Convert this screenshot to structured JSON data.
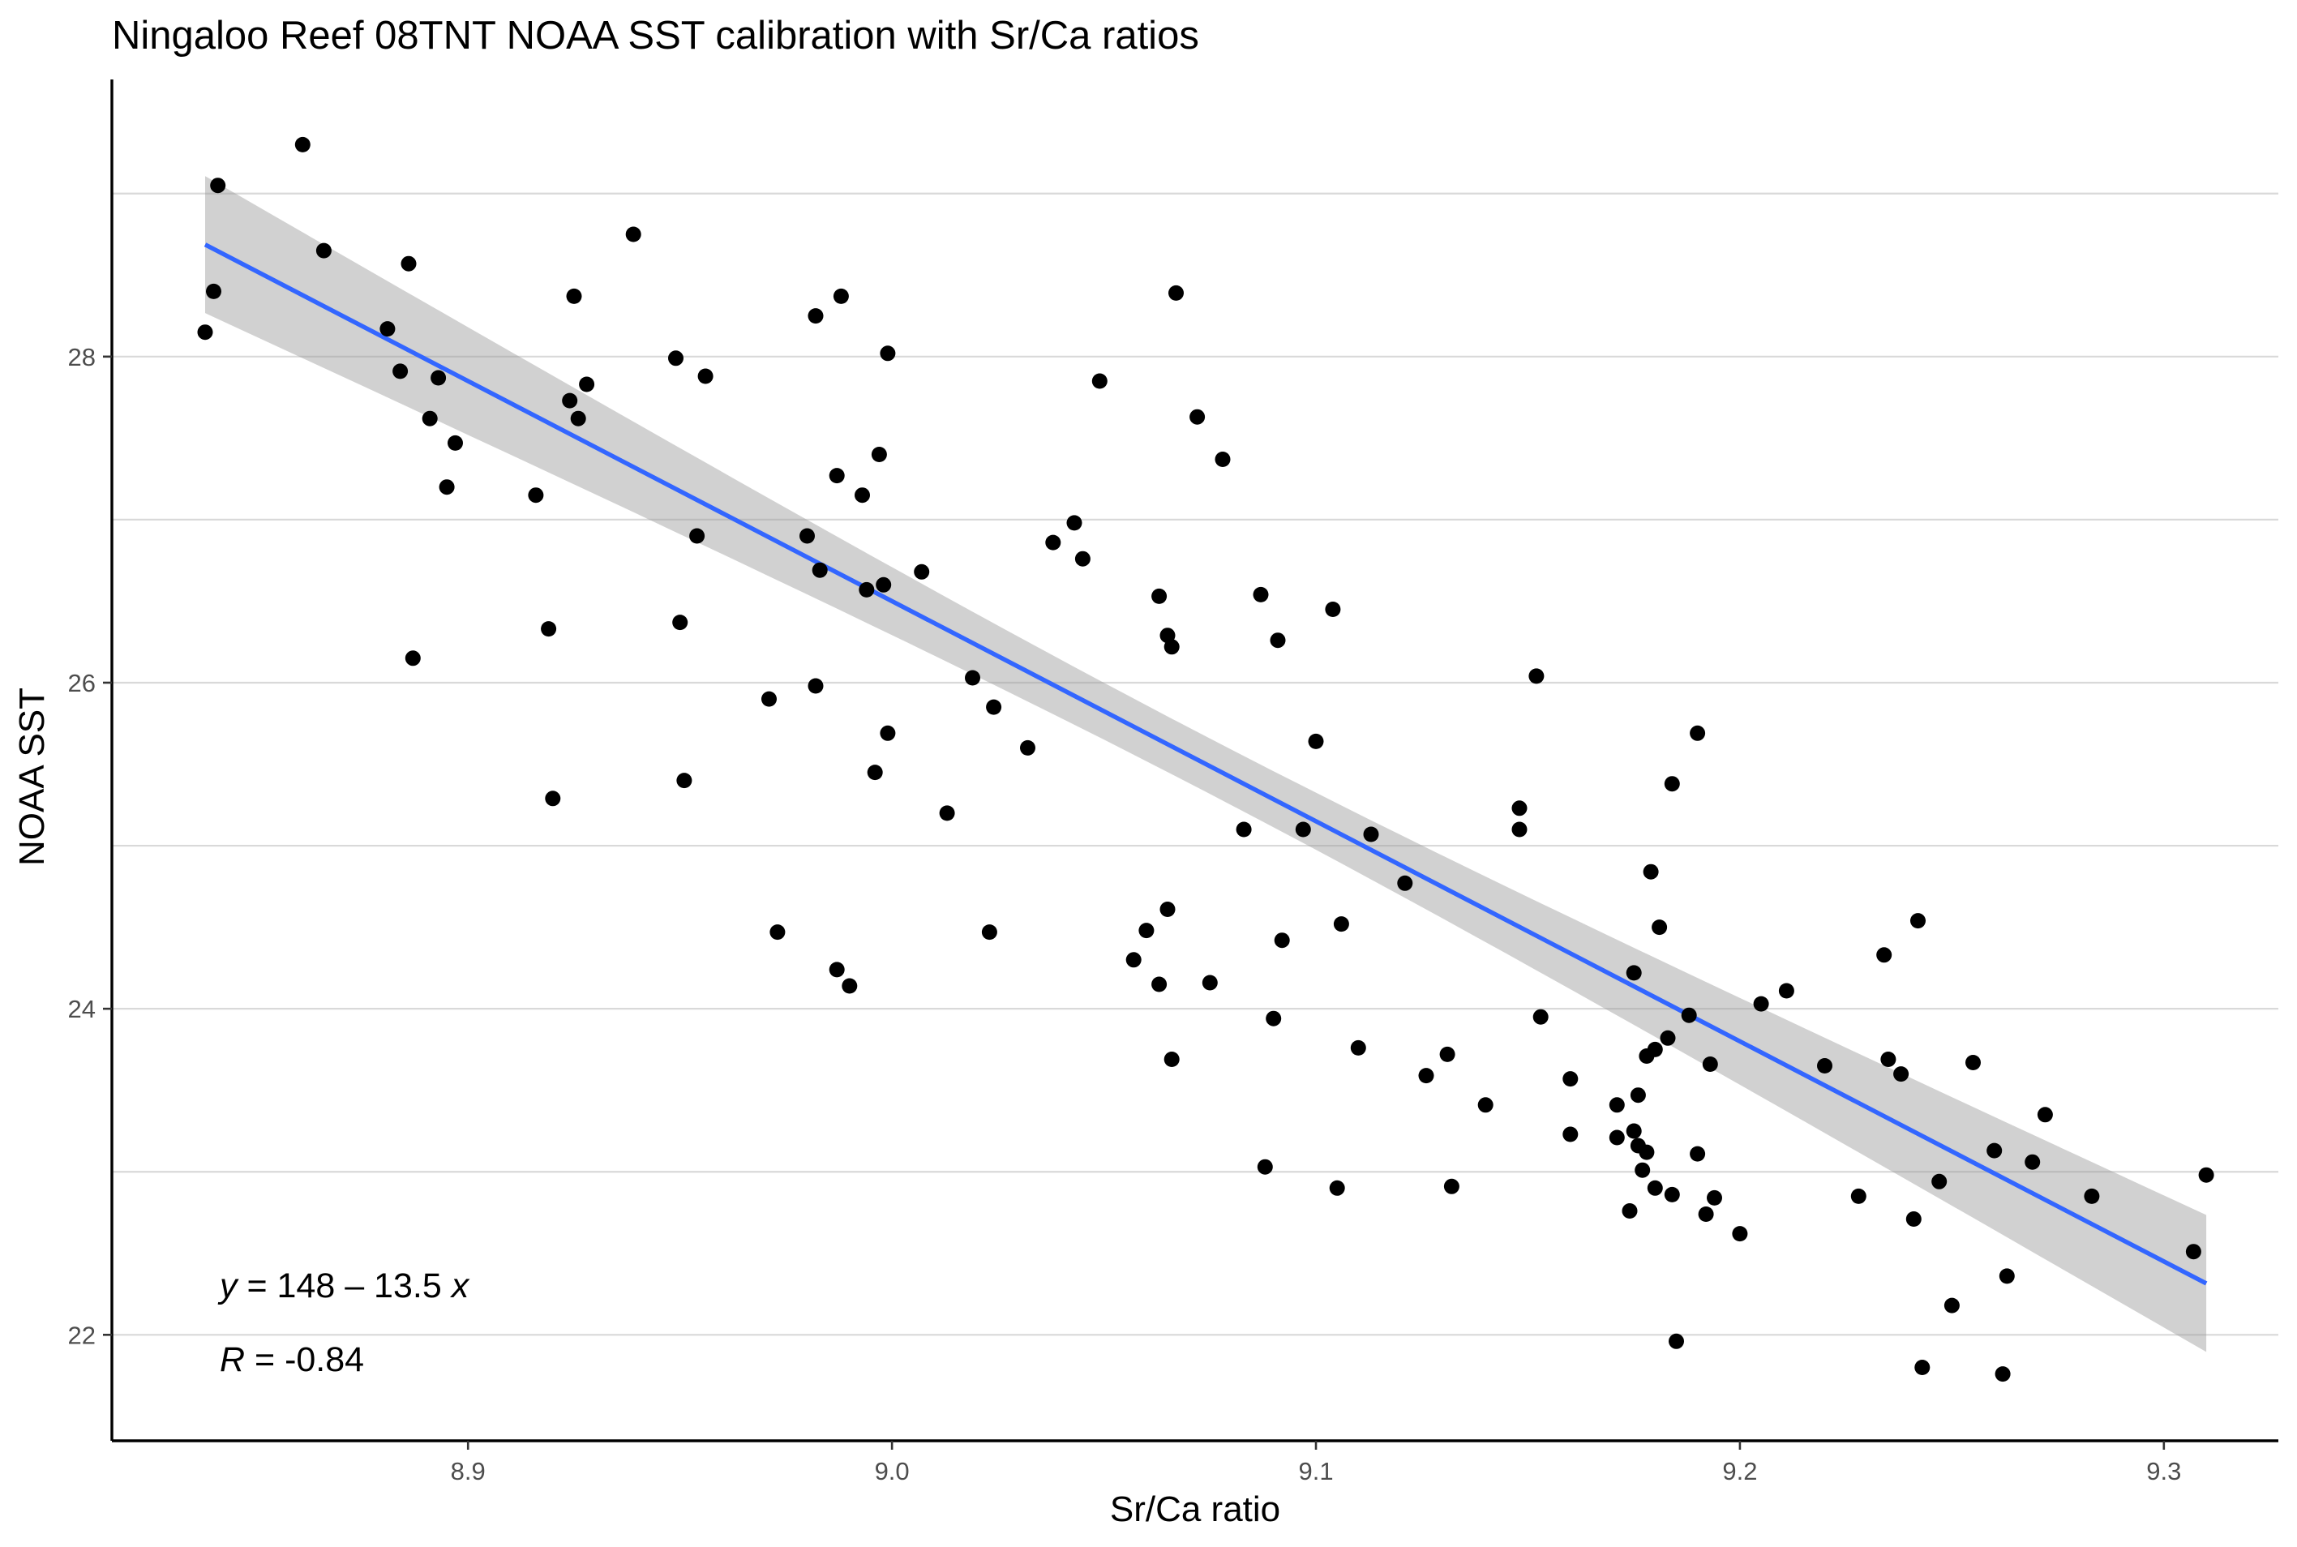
{
  "chart_data": {
    "type": "scatter",
    "title": "Ningaloo Reef 08TNT NOAA SST calibration with Sr/Ca ratios",
    "xlabel": "Sr/Ca ratio",
    "ylabel": "NOAA SST",
    "xlim": [
      8.816,
      9.327
    ],
    "ylim": [
      21.35,
      29.7
    ],
    "x_ticks": [
      8.9,
      9.0,
      9.1,
      9.2,
      9.3
    ],
    "x_tick_labels": [
      "8.9",
      "9.0",
      "9.1",
      "9.2",
      "9.3"
    ],
    "y_ticks": [
      22,
      24,
      26,
      28
    ],
    "y_tick_labels": [
      "22",
      "24",
      "26",
      "28"
    ],
    "grid": "horizontal",
    "colors": {
      "points": "#000000",
      "fit_line": "#3366ff",
      "confidence_band": "#999999",
      "grid": "#d9d9d9"
    },
    "fit": {
      "intercept": 148,
      "slope": -13.5,
      "x_range": [
        8.838,
        9.31
      ],
      "band_halfwidth_ends": 0.42,
      "band_halfwidth_mid": 0.17,
      "equation_label": {
        "y": "y",
        "rhs": " = 148 – 13.5 ",
        "x": "x"
      },
      "r_label": {
        "r": "R",
        "rhs": " = -0.84"
      }
    },
    "points": [
      [
        8.838,
        28.15
      ],
      [
        8.84,
        28.4
      ],
      [
        8.841,
        29.05
      ],
      [
        8.861,
        29.3
      ],
      [
        8.866,
        28.65
      ],
      [
        8.881,
        28.17
      ],
      [
        8.884,
        27.91
      ],
      [
        8.886,
        28.57
      ],
      [
        8.887,
        26.15
      ],
      [
        8.891,
        27.62
      ],
      [
        8.893,
        27.87
      ],
      [
        8.895,
        27.2
      ],
      [
        8.897,
        27.47
      ],
      [
        8.916,
        27.15
      ],
      [
        8.919,
        26.33
      ],
      [
        8.92,
        25.29
      ],
      [
        8.924,
        27.73
      ],
      [
        8.925,
        28.37
      ],
      [
        8.926,
        27.62
      ],
      [
        8.928,
        27.83
      ],
      [
        8.939,
        28.75
      ],
      [
        8.949,
        27.99
      ],
      [
        8.95,
        26.37
      ],
      [
        8.951,
        25.4
      ],
      [
        8.954,
        26.9
      ],
      [
        8.956,
        27.88
      ],
      [
        8.971,
        25.9
      ],
      [
        8.973,
        24.47
      ],
      [
        8.98,
        26.9
      ],
      [
        8.982,
        25.98
      ],
      [
        8.982,
        28.25
      ],
      [
        8.983,
        26.69
      ],
      [
        8.987,
        27.27
      ],
      [
        8.987,
        24.24
      ],
      [
        8.988,
        28.37
      ],
      [
        8.99,
        24.14
      ],
      [
        8.993,
        27.15
      ],
      [
        8.994,
        26.57
      ],
      [
        8.996,
        25.45
      ],
      [
        8.997,
        27.4
      ],
      [
        8.998,
        26.6
      ],
      [
        8.999,
        28.02
      ],
      [
        8.999,
        25.69
      ],
      [
        9.007,
        26.68
      ],
      [
        9.013,
        25.2
      ],
      [
        9.019,
        26.03
      ],
      [
        9.023,
        24.47
      ],
      [
        9.024,
        25.85
      ],
      [
        9.032,
        25.6
      ],
      [
        9.038,
        26.86
      ],
      [
        9.043,
        26.98
      ],
      [
        9.045,
        26.76
      ],
      [
        9.049,
        27.85
      ],
      [
        9.057,
        24.3
      ],
      [
        9.06,
        24.48
      ],
      [
        9.063,
        24.15
      ],
      [
        9.063,
        26.53
      ],
      [
        9.065,
        26.29
      ],
      [
        9.065,
        24.61
      ],
      [
        9.066,
        26.22
      ],
      [
        9.066,
        23.69
      ],
      [
        9.067,
        28.39
      ],
      [
        9.072,
        27.63
      ],
      [
        9.075,
        24.16
      ],
      [
        9.078,
        27.37
      ],
      [
        9.083,
        25.1
      ],
      [
        9.087,
        26.54
      ],
      [
        9.088,
        23.03
      ],
      [
        9.09,
        23.94
      ],
      [
        9.091,
        26.26
      ],
      [
        9.092,
        24.42
      ],
      [
        9.097,
        25.1
      ],
      [
        9.1,
        25.64
      ],
      [
        9.104,
        26.45
      ],
      [
        9.105,
        22.9
      ],
      [
        9.106,
        24.52
      ],
      [
        9.11,
        23.76
      ],
      [
        9.113,
        25.07
      ],
      [
        9.121,
        24.77
      ],
      [
        9.126,
        23.59
      ],
      [
        9.131,
        23.72
      ],
      [
        9.132,
        22.91
      ],
      [
        9.14,
        23.41
      ],
      [
        9.148,
        25.1
      ],
      [
        9.148,
        25.23
      ],
      [
        9.152,
        26.04
      ],
      [
        9.153,
        23.95
      ],
      [
        9.16,
        23.57
      ],
      [
        9.16,
        23.23
      ],
      [
        9.171,
        23.41
      ],
      [
        9.171,
        23.21
      ],
      [
        9.174,
        22.76
      ],
      [
        9.175,
        23.25
      ],
      [
        9.175,
        24.22
      ],
      [
        9.176,
        23.47
      ],
      [
        9.176,
        23.16
      ],
      [
        9.177,
        23.01
      ],
      [
        9.178,
        23.12
      ],
      [
        9.178,
        23.71
      ],
      [
        9.179,
        24.84
      ],
      [
        9.18,
        23.75
      ],
      [
        9.18,
        22.9
      ],
      [
        9.181,
        24.5
      ],
      [
        9.183,
        23.82
      ],
      [
        9.184,
        22.86
      ],
      [
        9.184,
        25.38
      ],
      [
        9.185,
        21.96
      ],
      [
        9.188,
        23.96
      ],
      [
        9.19,
        23.11
      ],
      [
        9.19,
        25.69
      ],
      [
        9.192,
        22.74
      ],
      [
        9.193,
        23.66
      ],
      [
        9.194,
        22.84
      ],
      [
        9.2,
        22.62
      ],
      [
        9.205,
        24.03
      ],
      [
        9.211,
        24.11
      ],
      [
        9.22,
        23.65
      ],
      [
        9.228,
        22.85
      ],
      [
        9.234,
        24.33
      ],
      [
        9.235,
        23.69
      ],
      [
        9.238,
        23.6
      ],
      [
        9.241,
        22.71
      ],
      [
        9.242,
        24.54
      ],
      [
        9.243,
        21.8
      ],
      [
        9.247,
        22.94
      ],
      [
        9.25,
        22.18
      ],
      [
        9.255,
        23.67
      ],
      [
        9.26,
        23.13
      ],
      [
        9.262,
        21.76
      ],
      [
        9.263,
        22.36
      ],
      [
        9.269,
        23.06
      ],
      [
        9.272,
        23.35
      ],
      [
        9.283,
        22.85
      ],
      [
        9.307,
        22.51
      ],
      [
        9.31,
        22.98
      ]
    ]
  }
}
